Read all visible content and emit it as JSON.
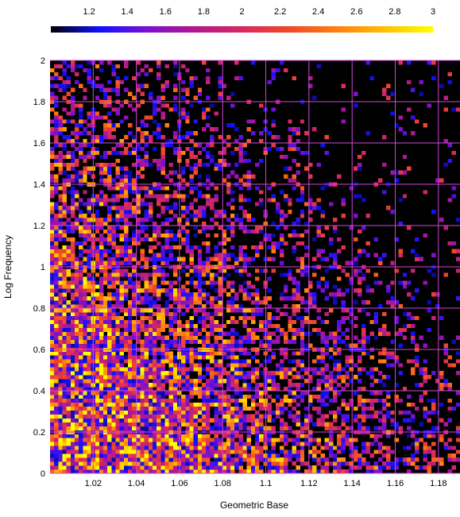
{
  "chart_data": {
    "type": "heatmap",
    "title": "",
    "xlabel": "Geometric Base",
    "ylabel": "Log Frequency",
    "xlim": [
      1.0,
      1.19
    ],
    "ylim": [
      0,
      2
    ],
    "xticks": [
      1.02,
      1.04,
      1.06,
      1.08,
      1.1,
      1.12,
      1.14,
      1.16,
      1.18
    ],
    "xtick_labels": [
      "1.02",
      "1.04",
      "1.06",
      "1.08",
      "1.1",
      "1.12",
      "1.14",
      "1.16",
      "1.18"
    ],
    "yticks": [
      0,
      0.2,
      0.4,
      0.6,
      0.8,
      1,
      1.2,
      1.4,
      1.6,
      1.8,
      2
    ],
    "ytick_labels": [
      "0",
      "0.2",
      "0.4",
      "0.6",
      "0.8",
      "1",
      "1.2",
      "1.4",
      "1.6",
      "1.8",
      "2"
    ],
    "grid": true,
    "grid_color": "#d048d8",
    "background_color": "#000000",
    "colorbar": {
      "position": "top",
      "range": [
        1.0,
        3.0
      ],
      "ticks": [
        1.2,
        1.4,
        1.6,
        1.8,
        2,
        2.2,
        2.4,
        2.6,
        2.8,
        3
      ],
      "tick_labels": [
        "1.2",
        "1.4",
        "1.6",
        "1.8",
        "2",
        "2.2",
        "2.4",
        "2.6",
        "2.8",
        "3"
      ],
      "colormap": [
        "#000000",
        "#1010ff",
        "#7a10d0",
        "#b01890",
        "#d82860",
        "#f04828",
        "#ff8010",
        "#ffc000",
        "#ffff00"
      ]
    },
    "bins": {
      "x_count": 100,
      "y_count": 105
    },
    "data_description_note": null,
    "density_model": {
      "value_range": [
        1.0,
        3.0
      ],
      "empty_value_below": 1.1,
      "dense_region": {
        "x": [
          1.0,
          1.1
        ],
        "y": [
          0,
          1.3
        ]
      },
      "sparse_region": {
        "x": [
          1.1,
          1.19
        ],
        "y": [
          0.8,
          2
        ]
      },
      "seed": 1337
    }
  }
}
